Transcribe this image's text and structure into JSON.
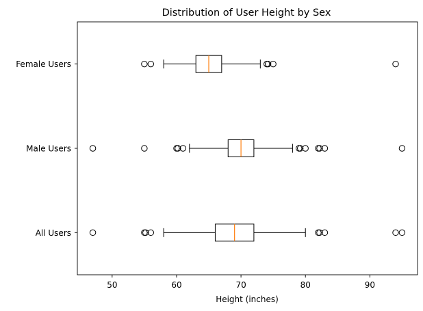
{
  "chart_data": {
    "type": "boxplot",
    "orientation": "horizontal",
    "title": "Distribution of User Height by Sex",
    "xlabel": "Height (inches)",
    "ylabel": "",
    "xlim": [
      44.6,
      97.4
    ],
    "xticks": [
      50,
      60,
      70,
      80,
      90
    ],
    "grid": false,
    "median_color": "#ff7f0e",
    "box_color": "#000000",
    "categories": [
      "All Users",
      "Male Users",
      "Female Users"
    ],
    "series": [
      {
        "category": "All Users",
        "whisker_low": 58,
        "q1": 66,
        "median": 69,
        "q3": 72,
        "whisker_high": 80,
        "outliers": [
          47,
          55,
          55.2,
          56,
          82,
          82.2,
          83,
          94,
          95
        ]
      },
      {
        "category": "Male Users",
        "whisker_low": 62,
        "q1": 68,
        "median": 70,
        "q3": 72,
        "whisker_high": 78,
        "outliers": [
          47,
          55,
          60,
          60.2,
          61,
          79,
          79.2,
          80,
          82,
          82.2,
          83,
          95
        ]
      },
      {
        "category": "Female Users",
        "whisker_low": 58,
        "q1": 63,
        "median": 65,
        "q3": 67,
        "whisker_high": 73,
        "outliers": [
          55,
          56,
          74,
          74.2,
          75,
          94
        ]
      }
    ]
  }
}
